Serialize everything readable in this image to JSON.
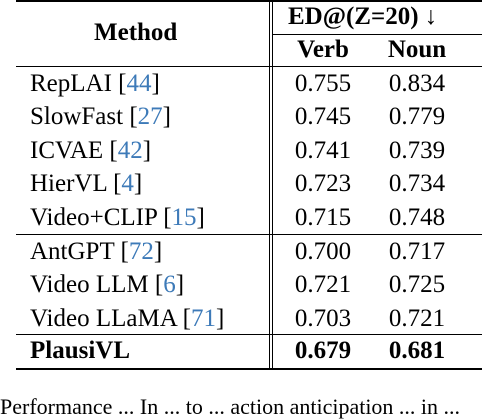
{
  "table": {
    "header": {
      "method": "Method",
      "group": "ED@(Z=20) ↓",
      "verb": "Verb",
      "noun": "Noun"
    },
    "groups": [
      [
        {
          "name": "RepLAI",
          "cite": "44",
          "verb": "0.755",
          "noun": "0.834"
        },
        {
          "name": "SlowFast",
          "cite": "27",
          "verb": "0.745",
          "noun": "0.779"
        },
        {
          "name": "ICVAE",
          "cite": "42",
          "verb": "0.741",
          "noun": "0.739"
        },
        {
          "name": "HierVL",
          "cite": "4",
          "verb": "0.723",
          "noun": "0.734"
        },
        {
          "name": "Video+CLIP",
          "cite": "15",
          "verb": "0.715",
          "noun": "0.748"
        }
      ],
      [
        {
          "name": "AntGPT",
          "cite": "72",
          "verb": "0.700",
          "noun": "0.717"
        },
        {
          "name": "Video LLM",
          "cite": "6",
          "verb": "0.721",
          "noun": "0.725"
        },
        {
          "name": "Video LLaMA",
          "cite": "71",
          "verb": "0.703",
          "noun": "0.721"
        }
      ]
    ],
    "final": {
      "name": "PlausiVL",
      "verb": "0.679",
      "noun": "0.681"
    }
  },
  "caption": "Performance ... In ... to ... action anticipation ... in ..."
}
